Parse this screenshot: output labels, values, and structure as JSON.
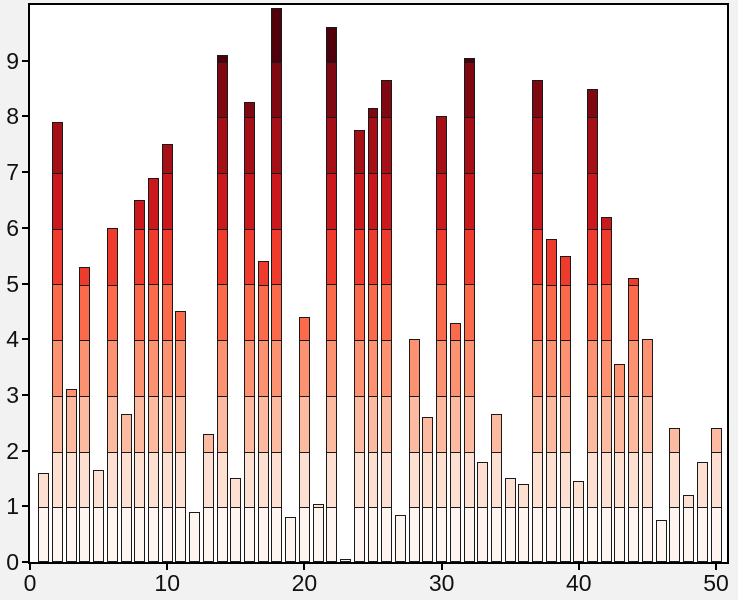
{
  "chart_data": {
    "type": "bar",
    "title": "",
    "xlabel": "",
    "ylabel": "",
    "legend": "none",
    "grid": false,
    "x": [
      1,
      2,
      3,
      4,
      5,
      6,
      7,
      8,
      9,
      10,
      11,
      12,
      13,
      14,
      15,
      16,
      17,
      18,
      19,
      20,
      21,
      22,
      23,
      24,
      25,
      26,
      27,
      28,
      29,
      30,
      31,
      32,
      33,
      34,
      35,
      36,
      37,
      38,
      39,
      40,
      41,
      42,
      43,
      44,
      45,
      46,
      47,
      48,
      49,
      50
    ],
    "values": [
      1.6,
      7.9,
      3.1,
      5.3,
      1.65,
      6.0,
      2.65,
      6.5,
      6.9,
      7.5,
      4.5,
      0.9,
      2.3,
      9.1,
      1.5,
      8.25,
      5.4,
      9.95,
      0.8,
      4.4,
      1.05,
      9.6,
      0.05,
      7.75,
      8.15,
      8.65,
      0.85,
      4.0,
      2.6,
      8.0,
      4.3,
      9.05,
      1.8,
      2.65,
      1.5,
      1.4,
      8.65,
      5.8,
      5.5,
      1.45,
      8.5,
      6.2,
      3.55,
      5.1,
      4.0,
      0.75,
      2.4,
      1.2,
      1.8,
      2.4
    ],
    "xlim": [
      0,
      50.8
    ],
    "ylim": [
      0,
      10
    ],
    "x_ticks": [
      0,
      10,
      20,
      30,
      40,
      50
    ],
    "y_ticks": [
      0,
      1,
      2,
      3,
      4,
      5,
      6,
      7,
      8,
      9
    ],
    "bar_width": 0.8,
    "color_mapping": "segment color depends on absolute y band (0-1 lightest ... 9-10 darkest)",
    "segment_colors": [
      "#fff5f0",
      "#fee0d2",
      "#fcbba1",
      "#fc9272",
      "#fb6a4a",
      "#ef3b2c",
      "#cb181d",
      "#a50f15",
      "#7f0812",
      "#4f000a"
    ],
    "bar_edge_color": "#1a1a1a",
    "axis_color": "#000000",
    "plot_bg": "#ffffff",
    "figure_bg": "#f2f2f2",
    "tick_label_color": "#111111"
  }
}
